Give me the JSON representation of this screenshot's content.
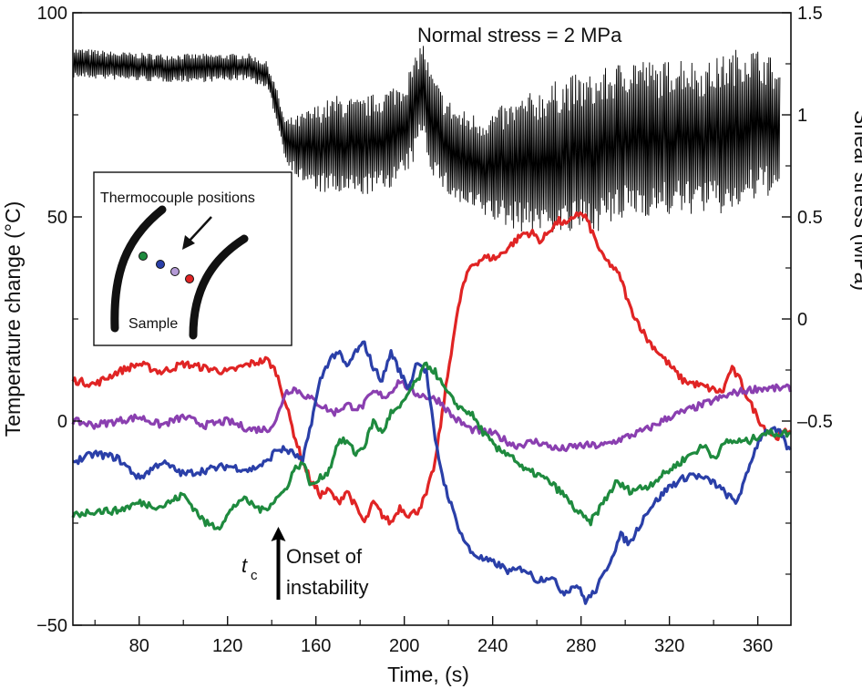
{
  "chart_data": {
    "type": "line",
    "title": "",
    "xlabel": "Time, (s)",
    "ylabel": "Temperature  change (°C)",
    "y2label": "Shear stress (MPa)",
    "xlim": [
      50,
      375
    ],
    "ylim": [
      -50,
      100
    ],
    "y2lim": [
      -1.5,
      1.5
    ],
    "grid": false,
    "x_ticks": [
      80,
      120,
      160,
      200,
      240,
      280,
      320,
      360
    ],
    "y_ticks": [
      100,
      50,
      0,
      -50
    ],
    "y2_ticks": [
      "1.5",
      "1",
      "0.5",
      "0",
      "–0.5"
    ],
    "y2_tick_values": [
      1.5,
      1.0,
      0.5,
      0.0,
      -0.5
    ],
    "annotations": {
      "normal_stress": "Normal stress = 2 MPa",
      "tc_main": "t",
      "tc_sub": "c",
      "onset_line1": "Onset of",
      "onset_line2": "instability",
      "onset_time": 143
    },
    "inset": {
      "title": "Thermocouple positions",
      "label": "Sample",
      "dot_colors": [
        "#1e8a3e",
        "#2a3fa8",
        "#b49ad6",
        "#e02424"
      ]
    },
    "shear_envelope": {
      "axis": "right",
      "color": "#000000",
      "x": [
        50,
        70,
        90,
        110,
        130,
        138,
        142,
        146,
        152,
        160,
        170,
        180,
        190,
        200,
        205,
        208,
        212,
        218,
        225,
        235,
        245,
        255,
        265,
        275,
        285,
        295,
        305,
        315,
        325,
        335,
        345,
        355,
        365,
        370
      ],
      "upper": [
        1.33,
        1.31,
        1.3,
        1.3,
        1.3,
        1.26,
        1.14,
        0.98,
        1.0,
        1.05,
        1.1,
        1.08,
        1.12,
        1.18,
        1.28,
        1.38,
        1.22,
        1.1,
        1.03,
        1.0,
        1.05,
        1.1,
        1.15,
        1.2,
        1.2,
        1.25,
        1.3,
        1.25,
        1.3,
        1.25,
        1.3,
        1.35,
        1.3,
        1.22
      ],
      "lower": [
        1.18,
        1.17,
        1.16,
        1.16,
        1.17,
        1.12,
        0.98,
        0.78,
        0.68,
        0.62,
        0.6,
        0.6,
        0.62,
        0.68,
        0.78,
        0.92,
        0.72,
        0.62,
        0.55,
        0.5,
        0.45,
        0.42,
        0.42,
        0.4,
        0.42,
        0.45,
        0.5,
        0.5,
        0.5,
        0.52,
        0.5,
        0.55,
        0.6,
        0.62
      ]
    },
    "series": [
      {
        "color": "#e02424",
        "x": [
          50,
          60,
          70,
          80,
          90,
          100,
          110,
          120,
          130,
          138,
          142,
          146,
          150,
          154,
          158,
          162,
          166,
          170,
          174,
          178,
          182,
          186,
          190,
          194,
          198,
          202,
          206,
          210,
          214,
          218,
          222,
          226,
          230,
          236,
          242,
          248,
          254,
          258,
          262,
          266,
          270,
          274,
          278,
          282,
          286,
          290,
          294,
          298,
          302,
          310,
          318,
          326,
          332,
          338,
          344,
          348,
          352,
          356,
          362,
          368,
          375
        ],
        "y": [
          10,
          9,
          12,
          14,
          12,
          14,
          13,
          12,
          14,
          15,
          12,
          5,
          -3,
          -10,
          -15,
          -18,
          -17,
          -20,
          -17,
          -21,
          -25,
          -20,
          -23,
          -25,
          -21,
          -23,
          -22,
          -18,
          -10,
          5,
          20,
          32,
          38,
          40,
          40,
          43,
          46,
          46,
          44,
          47,
          49,
          48,
          51,
          50,
          45,
          40,
          38,
          35,
          28,
          20,
          15,
          10,
          9,
          8,
          7,
          13,
          10,
          5,
          -1,
          -4,
          -2
        ]
      },
      {
        "color": "#8a3fb0",
        "x": [
          50,
          60,
          70,
          80,
          90,
          100,
          110,
          120,
          130,
          138,
          142,
          146,
          150,
          156,
          162,
          168,
          174,
          180,
          186,
          192,
          198,
          204,
          210,
          216,
          222,
          230,
          240,
          250,
          260,
          270,
          280,
          290,
          300,
          310,
          320,
          330,
          340,
          350,
          360,
          368,
          375
        ],
        "y": [
          0,
          -1,
          0,
          1,
          -1,
          1,
          -1,
          0,
          -2,
          -2,
          0,
          7,
          8,
          6,
          4,
          2,
          4,
          3,
          7,
          6,
          10,
          7,
          6,
          5,
          1,
          -2,
          -3,
          -6,
          -5,
          -7,
          -6,
          -6,
          -4,
          -2,
          1,
          3,
          5,
          7,
          8,
          8,
          8
        ]
      },
      {
        "color": "#2a3fa8",
        "x": [
          50,
          60,
          70,
          80,
          90,
          100,
          110,
          120,
          130,
          138,
          142,
          146,
          150,
          154,
          158,
          162,
          166,
          170,
          174,
          178,
          182,
          186,
          190,
          194,
          198,
          202,
          206,
          210,
          214,
          218,
          222,
          226,
          230,
          236,
          242,
          248,
          254,
          260,
          266,
          272,
          278,
          282,
          286,
          290,
          294,
          298,
          302,
          310,
          320,
          330,
          340,
          346,
          350,
          354,
          358,
          362,
          366,
          370,
          375
        ],
        "y": [
          -10,
          -8,
          -9,
          -14,
          -10,
          -13,
          -12,
          -11,
          -12,
          -10,
          -7,
          -7,
          -8,
          -10,
          0,
          10,
          15,
          17,
          13,
          17,
          19,
          13,
          10,
          17,
          12,
          8,
          15,
          12,
          -5,
          -15,
          -22,
          -28,
          -32,
          -34,
          -35,
          -37,
          -36,
          -39,
          -38,
          -42,
          -40,
          -44,
          -42,
          -38,
          -33,
          -28,
          -30,
          -22,
          -16,
          -13,
          -15,
          -18,
          -20,
          -15,
          -8,
          -3,
          -2,
          -3,
          -8
        ]
      },
      {
        "color": "#1e8a3e",
        "x": [
          50,
          60,
          70,
          80,
          90,
          100,
          110,
          116,
          120,
          126,
          130,
          136,
          140,
          146,
          150,
          154,
          158,
          162,
          166,
          170,
          174,
          178,
          182,
          186,
          190,
          194,
          198,
          202,
          206,
          210,
          214,
          218,
          222,
          226,
          230,
          236,
          242,
          248,
          254,
          260,
          266,
          272,
          278,
          284,
          290,
          296,
          302,
          310,
          320,
          330,
          336,
          340,
          346,
          350,
          356,
          362,
          368,
          375
        ],
        "y": [
          -23,
          -22,
          -22,
          -20,
          -21,
          -18,
          -25,
          -26,
          -23,
          -19,
          -20,
          -22,
          -20,
          -17,
          -12,
          -10,
          -16,
          -14,
          -12,
          -5,
          -5,
          -8,
          -6,
          0,
          -3,
          2,
          3,
          7,
          10,
          14,
          12,
          8,
          5,
          3,
          2,
          -3,
          -7,
          -8,
          -12,
          -13,
          -15,
          -18,
          -22,
          -25,
          -20,
          -15,
          -17,
          -16,
          -12,
          -8,
          -6,
          -9,
          -5,
          -5,
          -5,
          -3,
          -3,
          -3
        ]
      }
    ]
  }
}
